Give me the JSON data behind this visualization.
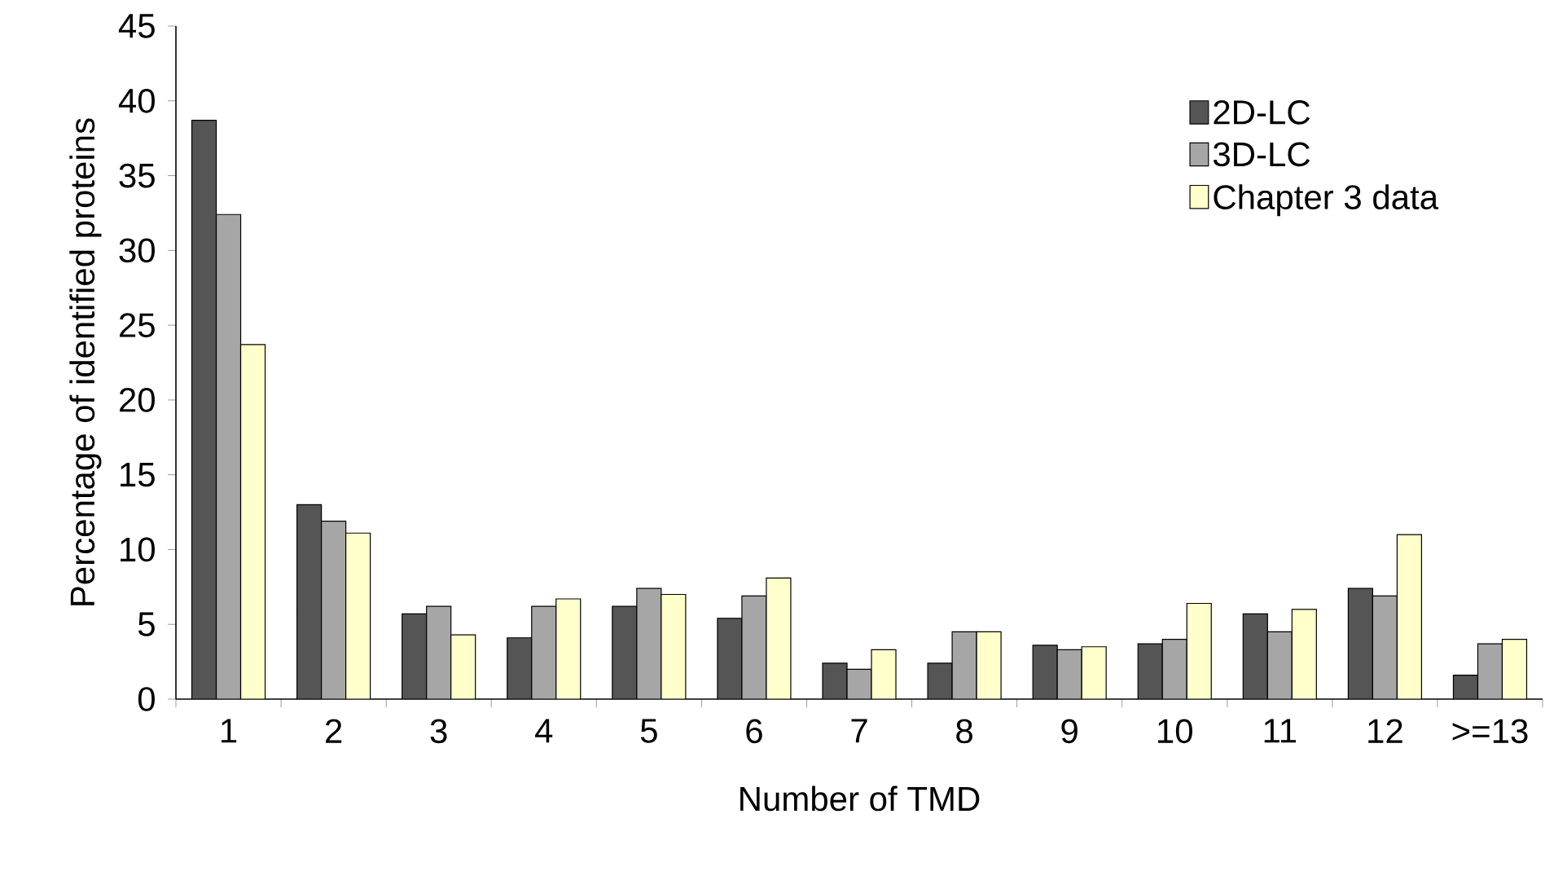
{
  "chart_data": {
    "type": "bar",
    "xlabel": "Number of TMD",
    "ylabel": "Percentage of identified proteins",
    "categories": [
      "1",
      "2",
      "3",
      "4",
      "5",
      "6",
      "7",
      "8",
      "9",
      "10",
      "11",
      "12",
      ">=13"
    ],
    "series": [
      {
        "name": "2D-LC",
        "color": "#555555",
        "values": [
          38.7,
          13.0,
          5.7,
          4.1,
          6.2,
          5.4,
          2.4,
          2.4,
          3.6,
          3.7,
          5.7,
          7.4,
          1.6
        ]
      },
      {
        "name": "3D-LC",
        "color": "#a6a6a6",
        "values": [
          32.4,
          11.9,
          6.2,
          6.2,
          7.4,
          6.9,
          2.0,
          4.5,
          3.3,
          4.0,
          4.5,
          6.9,
          3.7
        ]
      },
      {
        "name": "Chapter 3 data",
        "color": "#ffffcc",
        "values": [
          23.7,
          11.1,
          4.3,
          6.7,
          7.0,
          8.1,
          3.3,
          4.5,
          3.5,
          6.4,
          6.0,
          11.0,
          4.0
        ]
      }
    ],
    "ylim": [
      0,
      45
    ],
    "yticks": [
      0,
      5,
      10,
      15,
      20,
      25,
      30,
      35,
      40,
      45
    ],
    "grid": false,
    "legend": "top right"
  }
}
